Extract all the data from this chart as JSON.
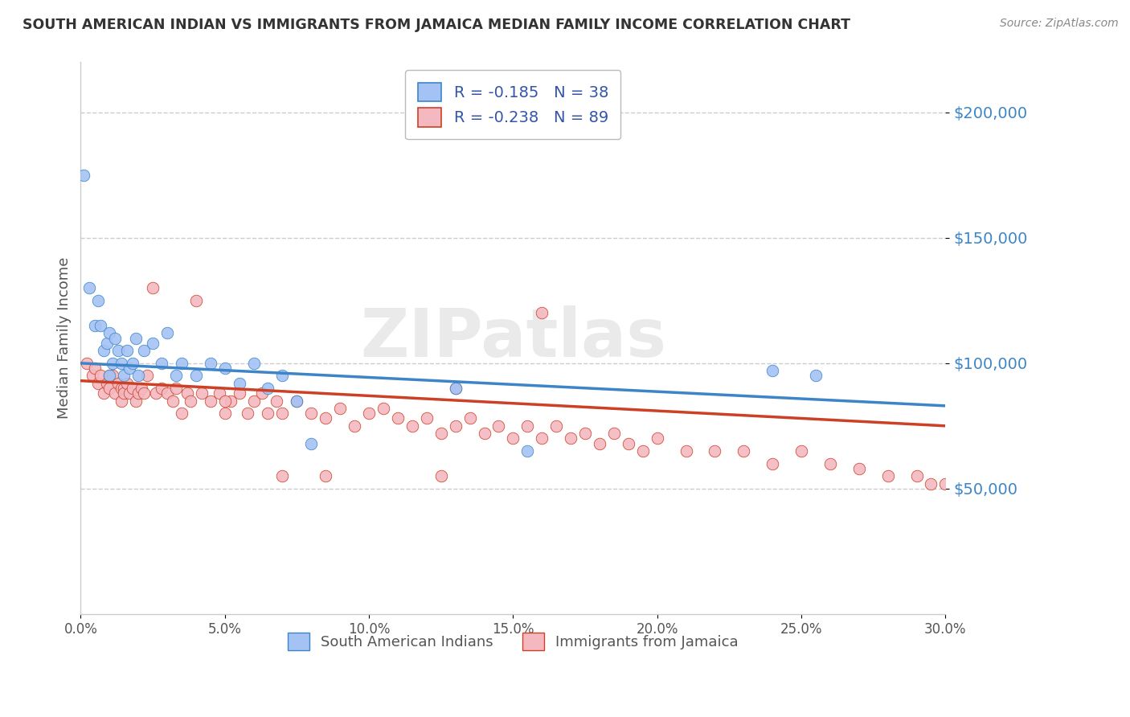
{
  "title": "SOUTH AMERICAN INDIAN VS IMMIGRANTS FROM JAMAICA MEDIAN FAMILY INCOME CORRELATION CHART",
  "source": "Source: ZipAtlas.com",
  "ylabel": "Median Family Income",
  "xmin": 0.0,
  "xmax": 0.3,
  "ymin": 0,
  "ymax": 220000,
  "yticks": [
    50000,
    100000,
    150000,
    200000
  ],
  "ytick_labels": [
    "$50,000",
    "$100,000",
    "$150,000",
    "$200,000"
  ],
  "legend_label1": "South American Indians",
  "legend_label2": "Immigrants from Jamaica",
  "r1": -0.185,
  "n1": 38,
  "r2": -0.238,
  "n2": 89,
  "color_blue": "#a4c2f4",
  "color_pink": "#f4b8c1",
  "line_color_blue": "#3d85c8",
  "line_color_pink": "#cc4125",
  "watermark": "ZIPatlas",
  "blue_x": [
    0.001,
    0.003,
    0.005,
    0.006,
    0.007,
    0.008,
    0.009,
    0.01,
    0.01,
    0.011,
    0.012,
    0.013,
    0.014,
    0.015,
    0.016,
    0.017,
    0.018,
    0.019,
    0.02,
    0.022,
    0.025,
    0.028,
    0.03,
    0.033,
    0.035,
    0.04,
    0.045,
    0.05,
    0.055,
    0.06,
    0.065,
    0.07,
    0.075,
    0.08,
    0.13,
    0.155,
    0.24,
    0.255
  ],
  "blue_y": [
    175000,
    130000,
    115000,
    125000,
    115000,
    105000,
    108000,
    112000,
    95000,
    100000,
    110000,
    105000,
    100000,
    95000,
    105000,
    98000,
    100000,
    110000,
    95000,
    105000,
    108000,
    100000,
    112000,
    95000,
    100000,
    95000,
    100000,
    98000,
    92000,
    100000,
    90000,
    95000,
    85000,
    68000,
    90000,
    65000,
    97000,
    95000
  ],
  "pink_x": [
    0.002,
    0.004,
    0.005,
    0.006,
    0.007,
    0.008,
    0.009,
    0.01,
    0.01,
    0.011,
    0.012,
    0.013,
    0.014,
    0.014,
    0.015,
    0.015,
    0.016,
    0.017,
    0.018,
    0.019,
    0.02,
    0.021,
    0.022,
    0.023,
    0.025,
    0.026,
    0.028,
    0.03,
    0.032,
    0.033,
    0.035,
    0.037,
    0.038,
    0.04,
    0.042,
    0.045,
    0.048,
    0.05,
    0.052,
    0.055,
    0.058,
    0.06,
    0.063,
    0.065,
    0.068,
    0.07,
    0.075,
    0.08,
    0.085,
    0.09,
    0.095,
    0.1,
    0.105,
    0.11,
    0.115,
    0.12,
    0.125,
    0.13,
    0.135,
    0.14,
    0.145,
    0.15,
    0.155,
    0.16,
    0.165,
    0.17,
    0.175,
    0.18,
    0.185,
    0.19,
    0.195,
    0.2,
    0.21,
    0.22,
    0.23,
    0.24,
    0.25,
    0.26,
    0.27,
    0.28,
    0.29,
    0.295,
    0.3,
    0.13,
    0.125,
    0.05,
    0.07,
    0.085,
    0.16
  ],
  "pink_y": [
    100000,
    95000,
    98000,
    92000,
    95000,
    88000,
    92000,
    95000,
    90000,
    95000,
    88000,
    92000,
    90000,
    85000,
    90000,
    88000,
    92000,
    88000,
    90000,
    85000,
    88000,
    90000,
    88000,
    95000,
    130000,
    88000,
    90000,
    88000,
    85000,
    90000,
    80000,
    88000,
    85000,
    125000,
    88000,
    85000,
    88000,
    80000,
    85000,
    88000,
    80000,
    85000,
    88000,
    80000,
    85000,
    80000,
    85000,
    80000,
    78000,
    82000,
    75000,
    80000,
    82000,
    78000,
    75000,
    78000,
    72000,
    75000,
    78000,
    72000,
    75000,
    70000,
    75000,
    70000,
    75000,
    70000,
    72000,
    68000,
    72000,
    68000,
    65000,
    70000,
    65000,
    65000,
    65000,
    60000,
    65000,
    60000,
    58000,
    55000,
    55000,
    52000,
    52000,
    90000,
    55000,
    85000,
    55000,
    55000,
    120000
  ]
}
